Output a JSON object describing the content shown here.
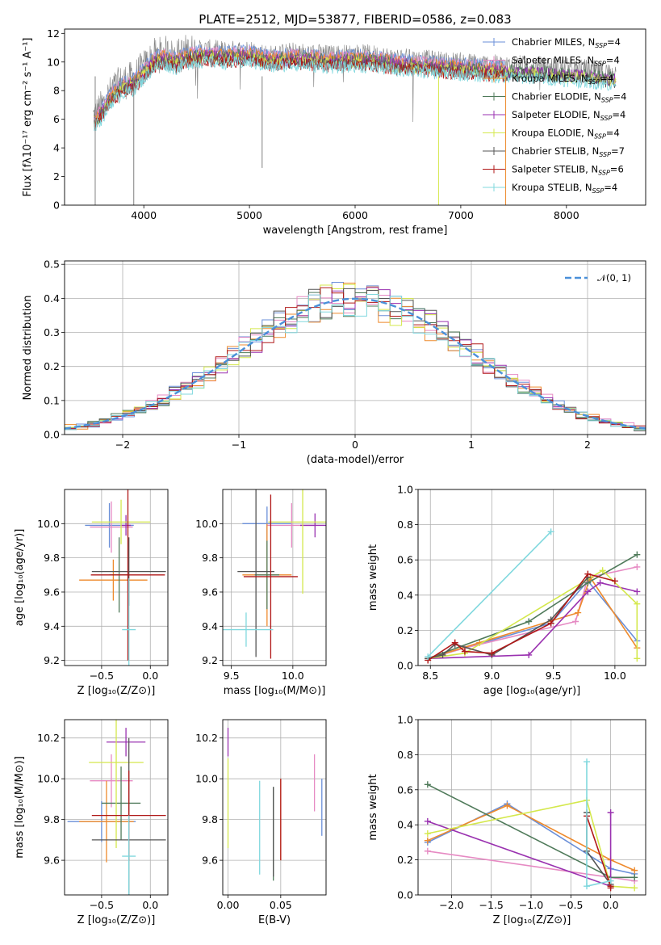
{
  "figure": {
    "title": "PLATE=2512, MJD=53877, FIBERID=0586, z=0.083"
  },
  "models": [
    {
      "name": "Chabrier MILES",
      "n_ssp": "4",
      "color": "#6a8fd8"
    },
    {
      "name": "Salpeter MILES",
      "n_ssp": "4",
      "color": "#e68ac3"
    },
    {
      "name": "Kroupa MILES",
      "n_ssp": "4",
      "color": "#ee8a2c"
    },
    {
      "name": "Chabrier ELODIE",
      "n_ssp": "4",
      "color": "#4f7a5a"
    },
    {
      "name": "Salpeter ELODIE",
      "n_ssp": "4",
      "color": "#9a32b0"
    },
    {
      "name": "Kroupa ELODIE",
      "n_ssp": "4",
      "color": "#d4e84c"
    },
    {
      "name": "Chabrier STELIB",
      "n_ssp": "7",
      "color": "#555555"
    },
    {
      "name": "Salpeter STELIB",
      "n_ssp": "6",
      "color": "#b01818"
    },
    {
      "name": "Kroupa STELIB",
      "n_ssp": "4",
      "color": "#80d8de"
    }
  ],
  "chart_data": [
    {
      "id": "spectrum",
      "type": "line",
      "xlabel": "wavelength [Angstrom, rest frame]",
      "ylabel": "Flux [fλ10⁻¹⁷ erg cm⁻² s⁻¹ A⁻¹]",
      "xlim": [
        3250,
        8750
      ],
      "ylim": [
        0,
        12.3
      ],
      "xticks": [
        4000,
        5000,
        6000,
        7000,
        8000
      ],
      "yticks": [
        0,
        2,
        4,
        6,
        8,
        10,
        12
      ],
      "grid": false,
      "legend": "right",
      "data_series": {
        "name": "data",
        "color": "#808080",
        "x_range": [
          3520,
          8470
        ]
      },
      "model_envelope": [
        [
          3530,
          6.2
        ],
        [
          3600,
          6.8
        ],
        [
          3700,
          8.0
        ],
        [
          3800,
          8.6
        ],
        [
          3900,
          8.8
        ],
        [
          4000,
          9.6
        ],
        [
          4100,
          10.4
        ],
        [
          4200,
          10.6
        ],
        [
          4300,
          10.3
        ],
        [
          4400,
          10.7
        ],
        [
          4600,
          10.8
        ],
        [
          4800,
          10.7
        ],
        [
          5000,
          10.8
        ],
        [
          5200,
          10.4
        ],
        [
          5400,
          10.6
        ],
        [
          5600,
          10.5
        ],
        [
          5800,
          10.4
        ],
        [
          6000,
          10.5
        ],
        [
          6200,
          10.4
        ],
        [
          6400,
          10.2
        ],
        [
          6600,
          10.1
        ],
        [
          6800,
          10.0
        ],
        [
          7000,
          9.9
        ],
        [
          7200,
          9.8
        ],
        [
          7400,
          9.7
        ],
        [
          7600,
          9.7
        ],
        [
          7800,
          9.6
        ],
        [
          8000,
          9.5
        ],
        [
          8200,
          9.4
        ],
        [
          8400,
          9.2
        ]
      ],
      "model_x_max": [
        7420,
        7420,
        7420,
        8470,
        8470,
        8470,
        8470,
        7420,
        8470
      ]
    },
    {
      "id": "residuals",
      "type": "bar",
      "xlabel": "(data-model)/error",
      "ylabel": "Normed distribution",
      "xlim": [
        -2.5,
        2.5
      ],
      "ylim": [
        0,
        0.51
      ],
      "xticks": [
        -2,
        -1,
        0,
        1,
        2
      ],
      "yticks": [
        0.0,
        0.1,
        0.2,
        0.3,
        0.4,
        0.5
      ],
      "grid": true,
      "legend": "top-right",
      "reference": {
        "label": "𝒩(0, 1)",
        "mean": 0,
        "sigma": 1,
        "color": "#4a90d9"
      },
      "bin_width": 0.1
    },
    {
      "id": "age-vs-Z",
      "type": "scatter",
      "xlabel": "Z [log₁₀(Z/Z⊙)]",
      "ylabel": "age  [log₁₀(age/yr)]",
      "xlim": [
        -0.88,
        0.18
      ],
      "ylim": [
        9.17,
        10.2
      ],
      "xticks": [
        -0.5,
        0.0
      ],
      "yticks": [
        9.2,
        9.4,
        9.6,
        9.8,
        10.0
      ],
      "grid": true,
      "points": [
        {
          "x": -0.42,
          "y": 9.99,
          "xerr": 0.25,
          "yerr": 0.13
        },
        {
          "x": -0.4,
          "y": 9.98,
          "xerr": 0.22,
          "yerr": 0.15
        },
        {
          "x": -0.38,
          "y": 9.67,
          "xerr": 0.35,
          "yerr": 0.12
        },
        {
          "x": -0.32,
          "y": 9.7,
          "xerr": 0.1,
          "yerr": 0.22
        },
        {
          "x": -0.25,
          "y": 9.99,
          "xerr": 0.05,
          "yerr": 0.06
        },
        {
          "x": -0.3,
          "y": 10.01,
          "xerr": 0.3,
          "yerr": 0.13
        },
        {
          "x": -0.22,
          "y": 9.72,
          "xerr": 0.38,
          "yerr": 0.2
        },
        {
          "x": -0.23,
          "y": 9.7,
          "xerr": 0.38,
          "yerr": 0.5
        },
        {
          "x": -0.22,
          "y": 9.38,
          "xerr": 0.07,
          "yerr": 0.3
        }
      ]
    },
    {
      "id": "age-vs-mass",
      "type": "scatter",
      "xlabel": "mass [log₁₀(M/M⊙)]",
      "ylabel": "",
      "xlim": [
        9.43,
        10.27
      ],
      "ylim": [
        9.17,
        10.2
      ],
      "xticks": [
        9.5,
        10.0
      ],
      "yticks": [
        9.2,
        9.4,
        9.6,
        9.8,
        10.0
      ],
      "grid": true,
      "points": [
        {
          "x": 9.79,
          "y": 10.0,
          "xerr": 0.2,
          "yerr": 0.1
        },
        {
          "x": 9.99,
          "y": 9.99,
          "xerr": 0.2,
          "yerr": 0.13
        },
        {
          "x": 9.79,
          "y": 9.7,
          "xerr": 0.2,
          "yerr": 0.3
        },
        {
          "x": 9.79,
          "y": 9.7,
          "xerr": 0.1,
          "yerr": 0.2
        },
        {
          "x": 10.18,
          "y": 9.99,
          "xerr": 0.12,
          "yerr": 0.07
        },
        {
          "x": 10.08,
          "y": 10.01,
          "xerr": 0.28,
          "yerr": 0.42
        },
        {
          "x": 9.7,
          "y": 9.72,
          "xerr": 0.15,
          "yerr": 0.5
        },
        {
          "x": 9.82,
          "y": 9.69,
          "xerr": 0.22,
          "yerr": 0.48
        },
        {
          "x": 9.62,
          "y": 9.38,
          "xerr": 0.22,
          "yerr": 0.1
        }
      ]
    },
    {
      "id": "massweight-vs-age",
      "type": "line",
      "xlabel": "age  [log₁₀(age/yr)]",
      "ylabel": "mass weight",
      "xlim": [
        8.4,
        10.25
      ],
      "ylim": [
        0,
        1.0
      ],
      "xticks": [
        8.5,
        9.0,
        9.5,
        10.0
      ],
      "yticks": [
        0.0,
        0.2,
        0.4,
        0.6,
        0.8,
        1.0
      ],
      "grid": true,
      "series": [
        {
          "x": [
            8.48,
            8.78,
            9.48,
            9.78,
            10.18
          ],
          "y": [
            0.04,
            0.1,
            0.24,
            0.48,
            0.14
          ]
        },
        {
          "x": [
            8.48,
            8.78,
            9.68,
            9.78,
            10.18
          ],
          "y": [
            0.04,
            0.1,
            0.25,
            0.5,
            0.56
          ]
        },
        {
          "x": [
            8.48,
            8.9,
            9.7,
            9.8,
            10.18
          ],
          "y": [
            0.04,
            0.13,
            0.3,
            0.5,
            0.1
          ]
        },
        {
          "x": [
            8.48,
            9.3,
            9.78,
            10.18
          ],
          "y": [
            0.04,
            0.25,
            0.47,
            0.63
          ]
        },
        {
          "x": [
            8.48,
            9.3,
            9.78,
            9.88,
            10.18
          ],
          "y": [
            0.04,
            0.06,
            0.42,
            0.47,
            0.42
          ]
        },
        {
          "x": [
            8.48,
            8.78,
            9.9,
            10.18,
            10.18
          ],
          "y": [
            0.04,
            0.07,
            0.54,
            0.35,
            0.04
          ]
        },
        {
          "x": [
            8.48,
            8.6,
            8.7,
            9.0,
            9.48,
            9.78
          ],
          "y": [
            0.04,
            0.06,
            0.12,
            0.06,
            0.26,
            0.5
          ]
        },
        {
          "x": [
            8.48,
            8.7,
            8.78,
            9.0,
            9.48,
            9.78,
            10.0
          ],
          "y": [
            0.03,
            0.13,
            0.08,
            0.07,
            0.24,
            0.52,
            0.48
          ]
        },
        {
          "x": [
            8.48,
            9.48
          ],
          "y": [
            0.05,
            0.76
          ]
        }
      ]
    },
    {
      "id": "mass-vs-Z",
      "type": "scatter",
      "xlabel": "Z [log₁₀(Z/Z⊙)]",
      "ylabel": "mass [log₁₀(M/M⊙)]",
      "xlim": [
        -0.88,
        0.18
      ],
      "ylim": [
        9.43,
        10.29
      ],
      "xticks": [
        -0.5,
        0.0
      ],
      "yticks": [
        9.6,
        9.8,
        10.0,
        10.2
      ],
      "grid": true,
      "points": [
        {
          "x": -0.5,
          "y": 9.79,
          "xerr": 0.35,
          "yerr": 0.1
        },
        {
          "x": -0.4,
          "y": 9.99,
          "xerr": 0.22,
          "yerr": 0.13
        },
        {
          "x": -0.45,
          "y": 9.79,
          "xerr": 0.28,
          "yerr": 0.2
        },
        {
          "x": -0.3,
          "y": 9.88,
          "xerr": 0.2,
          "yerr": 0.18
        },
        {
          "x": -0.25,
          "y": 10.18,
          "xerr": 0.2,
          "yerr": 0.07
        },
        {
          "x": -0.35,
          "y": 10.08,
          "xerr": 0.28,
          "yerr": 0.42
        },
        {
          "x": -0.22,
          "y": 9.7,
          "xerr": 0.38,
          "yerr": 0.5
        },
        {
          "x": -0.22,
          "y": 9.82,
          "xerr": 0.38,
          "yerr": 0.22
        },
        {
          "x": -0.22,
          "y": 9.62,
          "xerr": 0.07,
          "yerr": 0.2
        }
      ]
    },
    {
      "id": "mass-vs-ebv",
      "type": "scatter",
      "xlabel": "E(B-V)",
      "ylabel": "",
      "xlim": [
        -0.005,
        0.093
      ],
      "ylim": [
        9.43,
        10.29
      ],
      "xticks": [
        0.0,
        0.05
      ],
      "yticks": [
        9.6,
        9.8,
        10.0,
        10.2
      ],
      "grid": true,
      "points": [
        {
          "x": 0.089,
          "y": 9.86,
          "yerr": 0.14
        },
        {
          "x": 0.082,
          "y": 9.98,
          "yerr": 0.14
        },
        {
          "x": 0.05,
          "y": 9.8,
          "yerr": 0.2
        },
        {
          "x": 0.043,
          "y": 9.73,
          "yerr": 0.23
        },
        {
          "x": 0.0,
          "y": 10.18,
          "yerr": 0.07
        },
        {
          "x": 0.0,
          "y": 9.88,
          "yerr": 0.22
        },
        {
          "x": 0.043,
          "y": 9.74,
          "yerr": 0.22
        },
        {
          "x": 0.05,
          "y": 9.8,
          "yerr": 0.2
        },
        {
          "x": 0.03,
          "y": 9.76,
          "yerr": 0.23
        }
      ]
    },
    {
      "id": "massweight-vs-Z",
      "type": "line",
      "xlabel": "Z [log₁₀(Z/Z⊙)]",
      "ylabel": "mass weight",
      "xlim": [
        -2.42,
        0.44
      ],
      "ylim": [
        0,
        1.0
      ],
      "xticks": [
        -2.0,
        -1.5,
        -1.0,
        -0.5,
        0.0
      ],
      "yticks": [
        0.0,
        0.2,
        0.4,
        0.6,
        0.8,
        1.0
      ],
      "grid": true,
      "series": [
        {
          "x": [
            -2.3,
            -1.3,
            0.0,
            0.3
          ],
          "y": [
            0.3,
            0.52,
            0.15,
            0.12
          ]
        },
        {
          "x": [
            -2.3,
            0.3
          ],
          "y": [
            0.25,
            0.08
          ]
        },
        {
          "x": [
            -2.3,
            -1.3,
            0.0,
            0.3
          ],
          "y": [
            0.31,
            0.51,
            0.2,
            0.14
          ]
        },
        {
          "x": [
            -2.3,
            0.0,
            0.3
          ],
          "y": [
            0.63,
            0.1,
            0.1
          ]
        },
        {
          "x": [
            -2.3,
            0.0,
            0.0
          ],
          "y": [
            0.42,
            0.05,
            0.47
          ]
        },
        {
          "x": [
            -2.3,
            -0.3,
            0.0,
            0.3
          ],
          "y": [
            0.35,
            0.54,
            0.05,
            0.04
          ]
        },
        {
          "x": [
            -0.3,
            -0.3,
            0.0
          ],
          "y": [
            0.47,
            0.25,
            0.06
          ]
        },
        {
          "x": [
            -0.3,
            0.0,
            0.0
          ],
          "y": [
            0.45,
            0.05,
            0.04
          ]
        },
        {
          "x": [
            -0.3,
            -0.3,
            0.0
          ],
          "y": [
            0.76,
            0.05,
            0.08
          ]
        }
      ]
    }
  ]
}
